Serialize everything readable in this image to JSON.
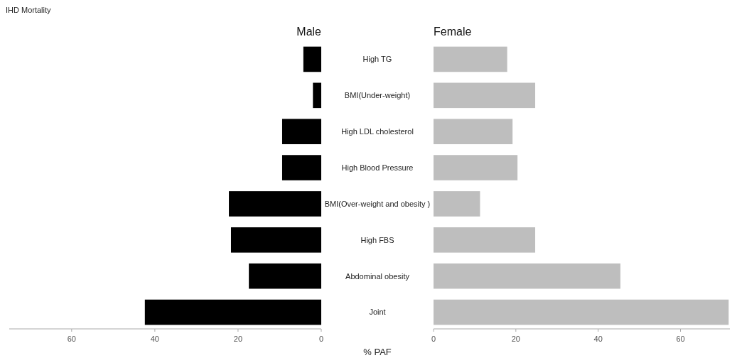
{
  "chart_data": [
    {
      "type": "bar",
      "orientation": "horizontal",
      "title": "IHD Mortality",
      "xlabel": "% PAF",
      "legend": false,
      "categories": [
        "High TG",
        "BMI(Under-weight)",
        "High LDL cholesterol",
        "High Blood Pressure",
        "BMI(Over-weight and obesity )",
        "High FBS",
        "Abdominal obesity",
        "Joint"
      ],
      "series": [
        {
          "name": "Male",
          "color": "#000000",
          "values": [
            4.3,
            2.0,
            9.4,
            9.4,
            22.2,
            21.7,
            17.4,
            42.4
          ]
        }
      ],
      "xlim": [
        75,
        0
      ],
      "xticks": [
        60,
        40,
        20,
        0
      ]
    },
    {
      "type": "bar",
      "orientation": "horizontal",
      "tick_labels": "x",
      "legend": false,
      "categories": [
        null,
        null,
        null,
        null,
        null,
        null,
        null,
        null
      ],
      "series": [
        {
          "name": "Female",
          "color": "#bebebe",
          "values": [
            17.9,
            24.7,
            19.2,
            20.4,
            11.3,
            24.7,
            45.4,
            71.7
          ]
        }
      ],
      "xlim": [
        0,
        72
      ],
      "xticks": [
        0,
        20,
        40,
        60
      ]
    }
  ]
}
